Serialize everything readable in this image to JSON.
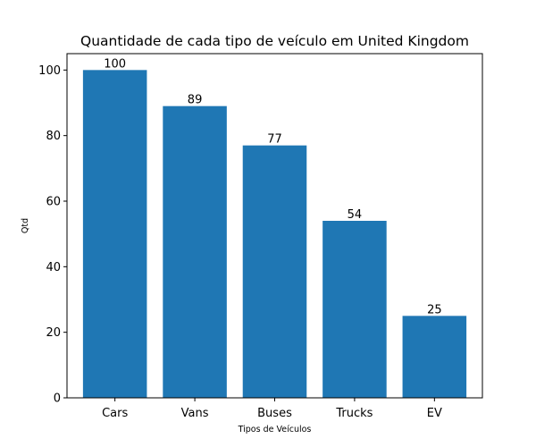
{
  "chart_data": {
    "type": "bar",
    "title": "Quantidade de cada tipo de veículo em United Kingdom",
    "xlabel": "Tipos de Veículos",
    "ylabel": "Qtd",
    "categories": [
      "Cars",
      "Vans",
      "Buses",
      "Trucks",
      "EV"
    ],
    "values": [
      100,
      89,
      77,
      54,
      25
    ],
    "data_labels": [
      "100",
      "89",
      "77",
      "54",
      "25"
    ],
    "ylim": [
      0,
      105
    ],
    "yticks": [
      "0",
      "20",
      "40",
      "60",
      "80",
      "100"
    ],
    "grid": false,
    "bar_color": "#1f77b4"
  }
}
